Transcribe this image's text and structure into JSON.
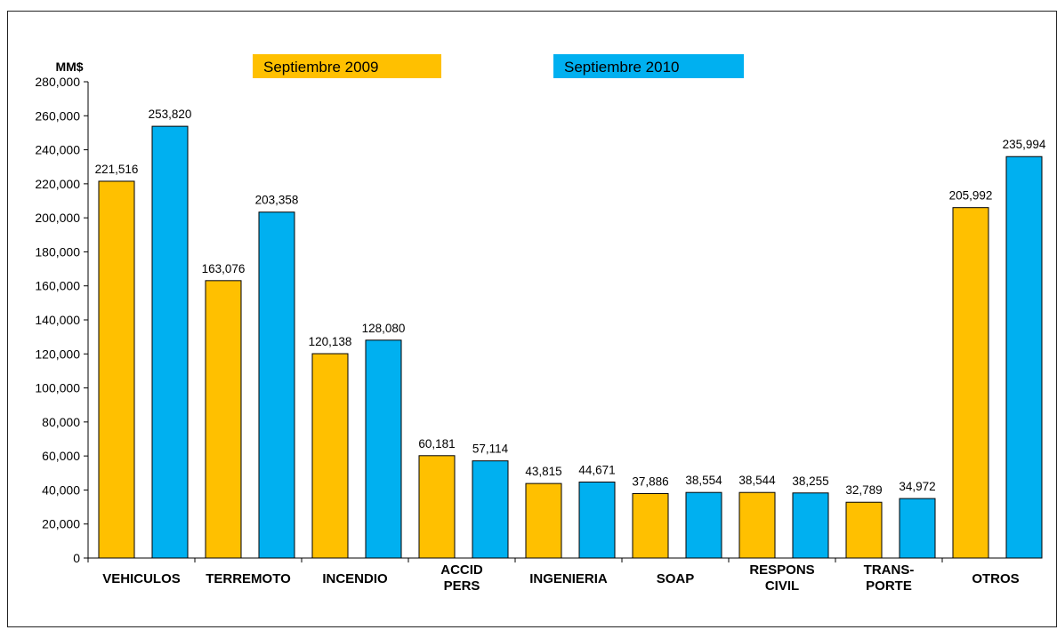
{
  "chart_data": {
    "type": "bar",
    "ylabel": "MM$",
    "ylim": [
      0,
      280000
    ],
    "ytick_step": 20000,
    "grid": false,
    "legend_position": "top",
    "categories": [
      [
        "VEHICULOS"
      ],
      [
        "TERREMOTO"
      ],
      [
        "INCENDIO"
      ],
      [
        "ACCID",
        "PERS"
      ],
      [
        "INGENIERIA"
      ],
      [
        "SOAP"
      ],
      [
        "RESPONS",
        "CIVIL"
      ],
      [
        "TRANS-",
        "PORTE"
      ],
      [
        "OTROS"
      ]
    ],
    "series": [
      {
        "name": "Septiembre 2009",
        "color": "#FFC000",
        "values": [
          221516,
          163076,
          120138,
          60181,
          43815,
          37886,
          38544,
          32789,
          205992
        ],
        "labels": [
          "221,516",
          "163,076",
          "120,138",
          "60,181",
          "43,815",
          "37,886",
          "38,544",
          "32,789",
          "205,992"
        ]
      },
      {
        "name": "Septiembre 2010",
        "color": "#00B0F0",
        "values": [
          253820,
          203358,
          128080,
          57114,
          44671,
          38554,
          38255,
          34972,
          235994
        ],
        "labels": [
          "253,820",
          "203,358",
          "128,080",
          "57,114",
          "44,671",
          "38,554",
          "38,255",
          "34,972",
          "235,994"
        ]
      }
    ]
  }
}
